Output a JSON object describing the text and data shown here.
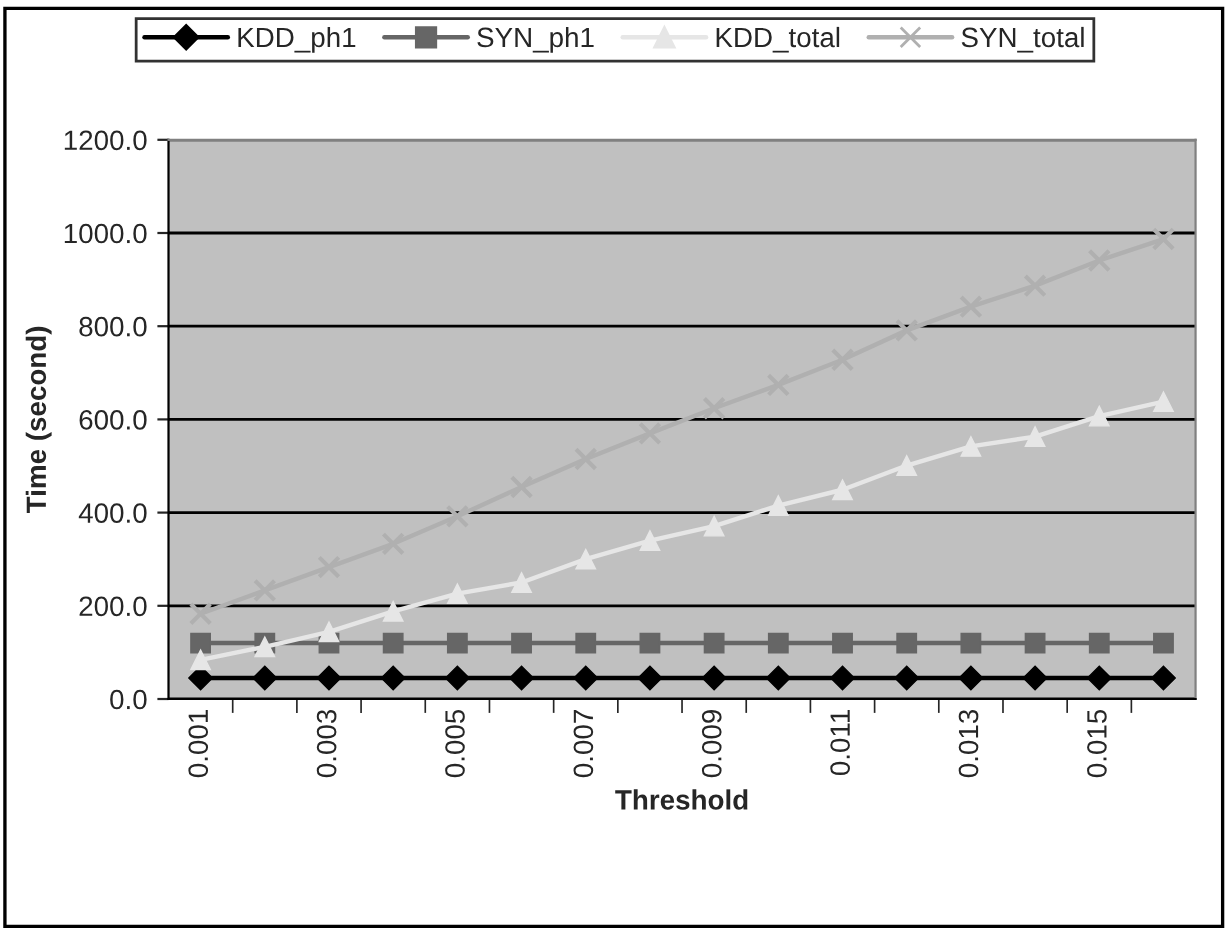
{
  "chart_data": {
    "type": "line",
    "xlabel": "Threshold",
    "ylabel": "Time (second)",
    "categories": [
      "0.001",
      null,
      "0.003",
      null,
      "0.005",
      null,
      "0.007",
      null,
      "0.009",
      null,
      "0.011",
      null,
      "0.013",
      null,
      "0.015",
      null
    ],
    "series": [
      {
        "name": "KDD_ph1",
        "color": "#000000",
        "marker": "diamond",
        "values": [
          45,
          45,
          45,
          45,
          45,
          45,
          45,
          45,
          45,
          45,
          45,
          45,
          45,
          45,
          45,
          45
        ]
      },
      {
        "name": "SYN_ph1",
        "color": "#666666",
        "marker": "square",
        "values": [
          120,
          120,
          120,
          120,
          120,
          120,
          120,
          120,
          120,
          120,
          120,
          120,
          120,
          120,
          120,
          120
        ]
      },
      {
        "name": "KDD_total",
        "color": "#e6e6e6",
        "marker": "triangle",
        "values": [
          84,
          112,
          144,
          188,
          226,
          250,
          300,
          340,
          371,
          415,
          449,
          501,
          542,
          563,
          607,
          638
        ]
      },
      {
        "name": "SYN_total",
        "color": "#b0b0b0",
        "marker": "cross",
        "values": [
          183,
          233,
          283,
          333,
          392,
          455,
          515,
          570,
          624,
          674,
          728,
          791,
          842,
          887,
          941,
          987
        ]
      }
    ],
    "ylim": [
      0,
      1200
    ],
    "yticks": [
      {
        "value": 0,
        "label": "0.0"
      },
      {
        "value": 200,
        "label": "200.0"
      },
      {
        "value": 400,
        "label": "400.0"
      },
      {
        "value": 600,
        "label": "600.0"
      },
      {
        "value": 800,
        "label": "800.0"
      },
      {
        "value": 1000,
        "label": "1000.0"
      },
      {
        "value": 1200,
        "label": "1200.0"
      }
    ],
    "grid": "y",
    "legend": "top",
    "line_style": "solid"
  }
}
